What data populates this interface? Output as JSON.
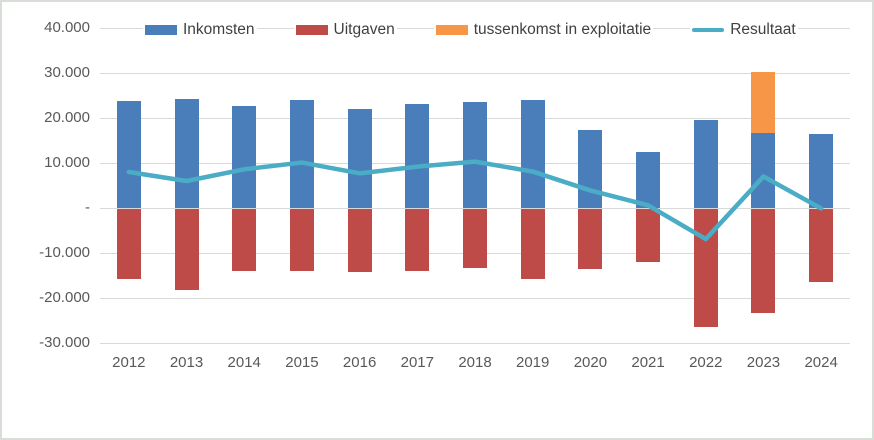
{
  "chart_data": {
    "type": "bar",
    "subtype": "stacked-bars-with-line-overlay",
    "categories": [
      "2012",
      "2013",
      "2014",
      "2015",
      "2016",
      "2017",
      "2018",
      "2019",
      "2020",
      "2021",
      "2022",
      "2023",
      "2024"
    ],
    "series": [
      {
        "name": "Inkomsten",
        "type": "bar",
        "color": "#4A7EBB",
        "values": [
          23700,
          24300,
          22700,
          24000,
          21900,
          23100,
          23600,
          23900,
          17400,
          12500,
          19600,
          16700,
          16400
        ]
      },
      {
        "name": "Uitgaven",
        "type": "bar",
        "color": "#BE4B48",
        "values": [
          -15700,
          -18300,
          -14100,
          -13900,
          -14200,
          -13900,
          -13300,
          -15800,
          -13500,
          -11900,
          -26500,
          -23300,
          -16500
        ]
      },
      {
        "name": "tussenkomst in exploitatie",
        "type": "bar",
        "stacked_on": "Inkomsten",
        "color": "#F79646",
        "values": [
          0,
          0,
          0,
          0,
          0,
          0,
          0,
          0,
          0,
          0,
          0,
          13600,
          0
        ]
      },
      {
        "name": "Resultaat",
        "type": "line",
        "color": "#4BACC6",
        "values": [
          8000,
          6000,
          8600,
          10100,
          7700,
          9200,
          10300,
          8100,
          3900,
          600,
          -6900,
          7000,
          -100
        ]
      }
    ],
    "y_axis": {
      "min": -30000,
      "max": 40000,
      "step": 10000,
      "tick_labels": [
        "40.000",
        "30.000",
        "20.000",
        "10.000",
        "-",
        "-10.000",
        "-20.000",
        "-30.000"
      ]
    },
    "x_axis": {
      "tick_labels": [
        "2012",
        "2013",
        "2014",
        "2015",
        "2016",
        "2017",
        "2018",
        "2019",
        "2020",
        "2021",
        "2022",
        "2023",
        "2024"
      ]
    },
    "grid": true,
    "legend_position": "top"
  },
  "colors": {
    "background": "#FFFFFF",
    "frame_border": "#D8DDD8",
    "gridline": "#D9D9D9",
    "axis_text": "#595959",
    "legend_text": "#404040"
  }
}
